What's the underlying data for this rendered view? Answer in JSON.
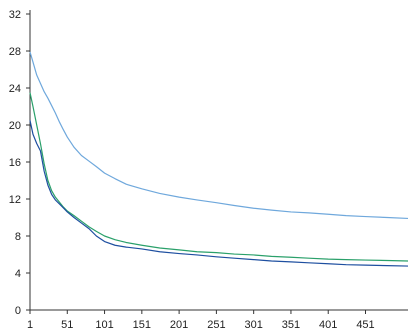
{
  "chart_data": {
    "type": "line",
    "title": "",
    "xlabel": "",
    "ylabel": "",
    "xlim": [
      1,
      508
    ],
    "ylim": [
      0,
      32
    ],
    "x_ticks": [
      "1",
      "51",
      "101",
      "151",
      "201",
      "251",
      "301",
      "351",
      "401",
      "451"
    ],
    "y_ticks": [
      "0",
      "4",
      "8",
      "12",
      "16",
      "20",
      "24",
      "28",
      "32"
    ],
    "grid": false,
    "legend": "none",
    "series": [
      {
        "color": "#6fa8dc",
        "points": [
          [
            1,
            27.9
          ],
          [
            5,
            26.8
          ],
          [
            10,
            25.4
          ],
          [
            15,
            24.5
          ],
          [
            20,
            23.6
          ],
          [
            25,
            22.9
          ],
          [
            30,
            22.1
          ],
          [
            35,
            21.3
          ],
          [
            40,
            20.4
          ],
          [
            45,
            19.6
          ],
          [
            51,
            18.7
          ],
          [
            60,
            17.6
          ],
          [
            70,
            16.7
          ],
          [
            80,
            16.1
          ],
          [
            90,
            15.5
          ],
          [
            101,
            14.8
          ],
          [
            115,
            14.2
          ],
          [
            130,
            13.6
          ],
          [
            151,
            13.1
          ],
          [
            175,
            12.6
          ],
          [
            201,
            12.2
          ],
          [
            225,
            11.9
          ],
          [
            251,
            11.6
          ],
          [
            275,
            11.3
          ],
          [
            301,
            11.0
          ],
          [
            325,
            10.8
          ],
          [
            351,
            10.6
          ],
          [
            375,
            10.5
          ],
          [
            401,
            10.35
          ],
          [
            425,
            10.2
          ],
          [
            451,
            10.1
          ],
          [
            480,
            10.0
          ],
          [
            508,
            9.9
          ]
        ]
      },
      {
        "color": "#2aa06a",
        "points": [
          [
            1,
            23.5
          ],
          [
            5,
            22.0
          ],
          [
            10,
            20.0
          ],
          [
            15,
            18.0
          ],
          [
            20,
            15.8
          ],
          [
            25,
            14.0
          ],
          [
            30,
            12.9
          ],
          [
            35,
            12.2
          ],
          [
            40,
            11.7
          ],
          [
            45,
            11.2
          ],
          [
            51,
            10.7
          ],
          [
            60,
            10.2
          ],
          [
            70,
            9.6
          ],
          [
            80,
            9.0
          ],
          [
            90,
            8.5
          ],
          [
            101,
            8.0
          ],
          [
            115,
            7.6
          ],
          [
            130,
            7.3
          ],
          [
            151,
            7.0
          ],
          [
            175,
            6.7
          ],
          [
            201,
            6.5
          ],
          [
            225,
            6.3
          ],
          [
            251,
            6.2
          ],
          [
            275,
            6.05
          ],
          [
            301,
            5.95
          ],
          [
            325,
            5.8
          ],
          [
            351,
            5.7
          ],
          [
            375,
            5.6
          ],
          [
            401,
            5.5
          ],
          [
            425,
            5.45
          ],
          [
            451,
            5.4
          ],
          [
            480,
            5.35
          ],
          [
            508,
            5.3
          ]
        ]
      },
      {
        "color": "#1e4fa0",
        "points": [
          [
            1,
            20.5
          ],
          [
            5,
            19.0
          ],
          [
            10,
            18.0
          ],
          [
            15,
            17.2
          ],
          [
            20,
            15.0
          ],
          [
            25,
            13.5
          ],
          [
            30,
            12.5
          ],
          [
            35,
            11.9
          ],
          [
            40,
            11.5
          ],
          [
            45,
            11.1
          ],
          [
            51,
            10.6
          ],
          [
            60,
            10.0
          ],
          [
            70,
            9.4
          ],
          [
            80,
            8.8
          ],
          [
            90,
            8.0
          ],
          [
            101,
            7.4
          ],
          [
            115,
            7.0
          ],
          [
            130,
            6.8
          ],
          [
            151,
            6.6
          ],
          [
            175,
            6.3
          ],
          [
            201,
            6.1
          ],
          [
            225,
            5.95
          ],
          [
            251,
            5.75
          ],
          [
            275,
            5.6
          ],
          [
            301,
            5.45
          ],
          [
            325,
            5.3
          ],
          [
            351,
            5.2
          ],
          [
            375,
            5.1
          ],
          [
            401,
            5.0
          ],
          [
            425,
            4.9
          ],
          [
            451,
            4.85
          ],
          [
            480,
            4.8
          ],
          [
            508,
            4.75
          ]
        ]
      }
    ]
  }
}
